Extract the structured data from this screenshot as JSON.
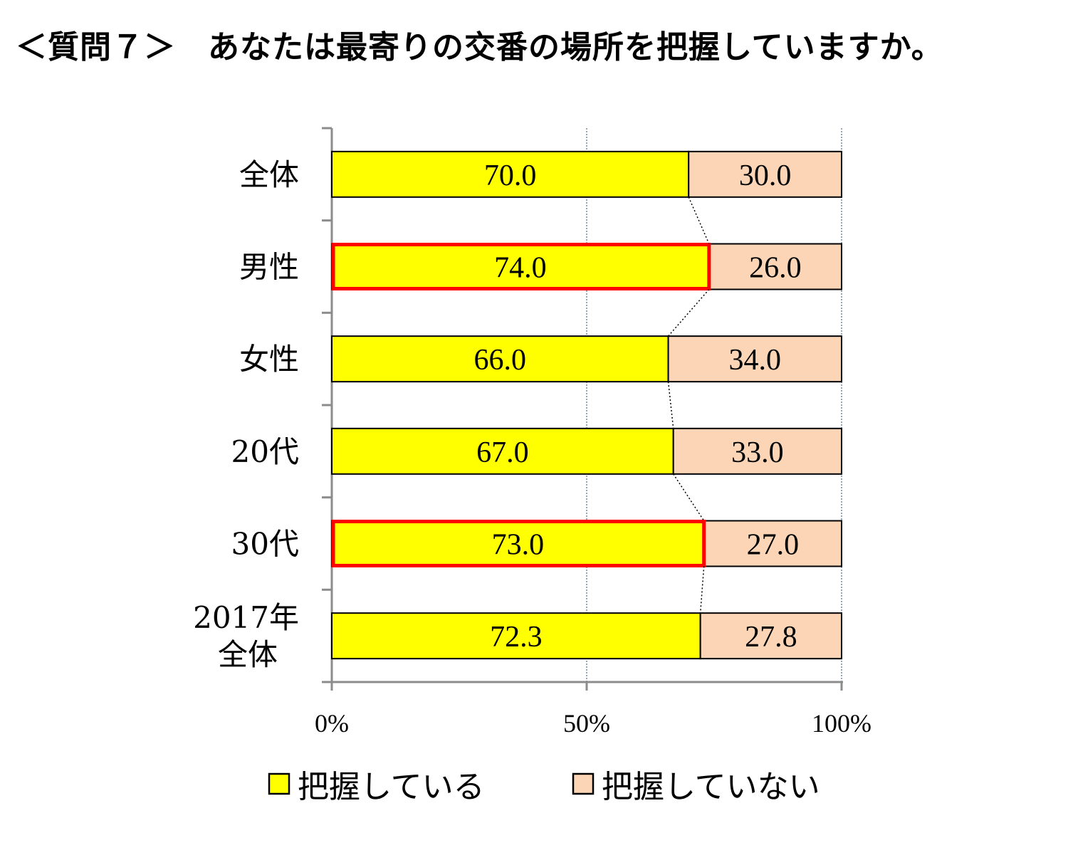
{
  "title": "＜質問７＞　あなたは最寄りの交番の場所を把握していますか。",
  "chart_data": {
    "type": "bar",
    "orientation": "horizontal",
    "stacked": "percent",
    "categories": [
      [
        "全体"
      ],
      [
        "男性"
      ],
      [
        "女性"
      ],
      [
        "20代"
      ],
      [
        "30代"
      ],
      [
        "2017年",
        "全体"
      ]
    ],
    "series": [
      {
        "name": "把握している",
        "values": [
          70.0,
          74.0,
          66.0,
          67.0,
          73.0,
          72.3
        ],
        "color": "#FFFF00"
      },
      {
        "name": "把握していない",
        "values": [
          30.0,
          26.0,
          34.0,
          33.0,
          27.0,
          27.8
        ],
        "color": "#FBD5B5"
      }
    ],
    "value_labels_1": [
      "70.0",
      "74.0",
      "66.0",
      "67.0",
      "73.0",
      "72.3"
    ],
    "value_labels_2": [
      "30.0",
      "26.0",
      "34.0",
      "33.0",
      "27.0",
      "27.8"
    ],
    "highlighted": [
      "男性",
      "30代"
    ],
    "highlight_color": "#FF0000",
    "xlim": [
      0,
      100
    ],
    "xticks": [
      "0%",
      "50%",
      "100%"
    ],
    "grid": "vertical dotted at 50% and 100%",
    "series_lines": "dotted connectors between bar ends",
    "legend": "bottom"
  }
}
